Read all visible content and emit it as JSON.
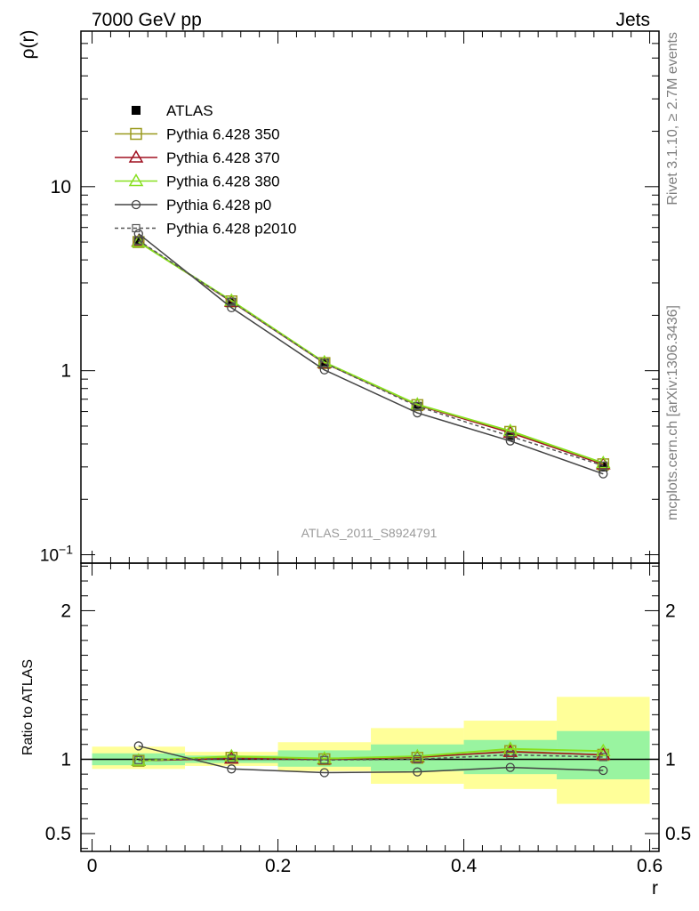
{
  "header": {
    "left": "7000 GeV pp",
    "right": "Jets"
  },
  "side_notes": {
    "rivet": "Rivet 3.1.10, ≥ 2.7M events",
    "mcplots": "mcplots.cern.ch [arXiv:1306.3436]"
  },
  "analysis_id": "ATLAS_2011_S8924791",
  "colors": {
    "band_inner": "#99f4a0",
    "band_outer": "#ffff99",
    "atlas": "#000000",
    "p350": "#9a9a1e",
    "p370": "#a01020",
    "p380": "#88e020",
    "p0": "#444444",
    "p2010": "#555555"
  },
  "chart_data": [
    {
      "type": "line",
      "panel": "main",
      "ylabel": "ρ(r)",
      "xlabel": "",
      "ylog": true,
      "ylim": [
        0.09,
        70
      ],
      "xlim": [
        -0.012,
        0.61
      ],
      "yticks": [
        {
          "v": 0.1,
          "base": "10",
          "exp": "−1"
        },
        {
          "v": 1,
          "label": "1"
        },
        {
          "v": 10,
          "label": "10"
        }
      ],
      "x": [
        0.05,
        0.15,
        0.25,
        0.35,
        0.45,
        0.55
      ],
      "series": [
        {
          "name": "ATLAS",
          "key": "atlas",
          "marker": "filled-square",
          "line": "none",
          "values": [
            5.1,
            2.35,
            1.1,
            0.64,
            0.44,
            0.3
          ]
        },
        {
          "name": "Pythia 6.428 350",
          "key": "p350",
          "marker": "open-square",
          "line": "solid",
          "values": [
            5.0,
            2.38,
            1.1,
            0.65,
            0.465,
            0.31
          ]
        },
        {
          "name": "Pythia 6.428 370",
          "key": "p370",
          "marker": "open-triangle",
          "line": "solid",
          "values": [
            5.05,
            2.37,
            1.1,
            0.65,
            0.46,
            0.31
          ]
        },
        {
          "name": "Pythia 6.428 380",
          "key": "p380",
          "marker": "open-triangle",
          "line": "solid",
          "values": [
            5.0,
            2.4,
            1.11,
            0.655,
            0.47,
            0.315
          ]
        },
        {
          "name": "Pythia 6.428 p0",
          "key": "p0",
          "marker": "open-circle",
          "line": "solid",
          "values": [
            5.55,
            2.2,
            1.01,
            0.59,
            0.415,
            0.275
          ]
        },
        {
          "name": "Pythia 6.428 p2010",
          "key": "p2010",
          "marker": "open-square-small",
          "line": "dashed",
          "values": [
            5.1,
            2.37,
            1.1,
            0.64,
            0.44,
            0.305
          ]
        }
      ]
    },
    {
      "type": "line",
      "panel": "ratio",
      "ylabel": "Ratio to ATLAS",
      "xlabel": "r",
      "ylim": [
        0.38,
        2.32
      ],
      "xlim": [
        -0.012,
        0.61
      ],
      "xticks": [
        0,
        0.2,
        0.4,
        0.6
      ],
      "xtick_labels": [
        "0",
        "0.2",
        "0.4",
        "0.6"
      ],
      "yticks": [
        0.5,
        1,
        2
      ],
      "ytick_labels": [
        "0.5",
        "1",
        "2"
      ],
      "bins": [
        [
          0.0,
          0.1
        ],
        [
          0.1,
          0.2
        ],
        [
          0.2,
          0.3
        ],
        [
          0.3,
          0.4
        ],
        [
          0.4,
          0.5
        ],
        [
          0.5,
          0.6
        ]
      ],
      "band_inner": [
        [
          0.96,
          1.04
        ],
        [
          0.975,
          1.025
        ],
        [
          0.95,
          1.06
        ],
        [
          0.92,
          1.1
        ],
        [
          0.9,
          1.13
        ],
        [
          0.865,
          1.19
        ]
      ],
      "band_outer": [
        [
          0.935,
          1.085
        ],
        [
          0.955,
          1.05
        ],
        [
          0.92,
          1.115
        ],
        [
          0.835,
          1.21
        ],
        [
          0.8,
          1.26
        ],
        [
          0.7,
          1.42
        ]
      ],
      "x": [
        0.05,
        0.15,
        0.25,
        0.35,
        0.45,
        0.55
      ],
      "series": [
        {
          "name": "Pythia 6.428 350",
          "key": "p350",
          "marker": "open-square",
          "line": "solid",
          "values": [
            0.99,
            1.01,
            1.0,
            1.01,
            1.055,
            1.03
          ]
        },
        {
          "name": "Pythia 6.428 370",
          "key": "p370",
          "marker": "open-triangle",
          "line": "solid",
          "values": [
            0.99,
            1.005,
            1.0,
            1.015,
            1.05,
            1.03
          ]
        },
        {
          "name": "Pythia 6.428 380",
          "key": "p380",
          "marker": "open-triangle",
          "line": "solid",
          "values": [
            0.99,
            1.02,
            1.005,
            1.02,
            1.07,
            1.055
          ]
        },
        {
          "name": "Pythia 6.428 p0",
          "key": "p0",
          "marker": "open-circle",
          "line": "solid",
          "values": [
            1.09,
            0.935,
            0.91,
            0.915,
            0.945,
            0.925
          ]
        },
        {
          "name": "Pythia 6.428 p2010",
          "key": "p2010",
          "marker": "open-square-small",
          "line": "dashed",
          "values": [
            0.995,
            1.005,
            0.995,
            1.0,
            1.03,
            1.015
          ]
        }
      ]
    }
  ]
}
